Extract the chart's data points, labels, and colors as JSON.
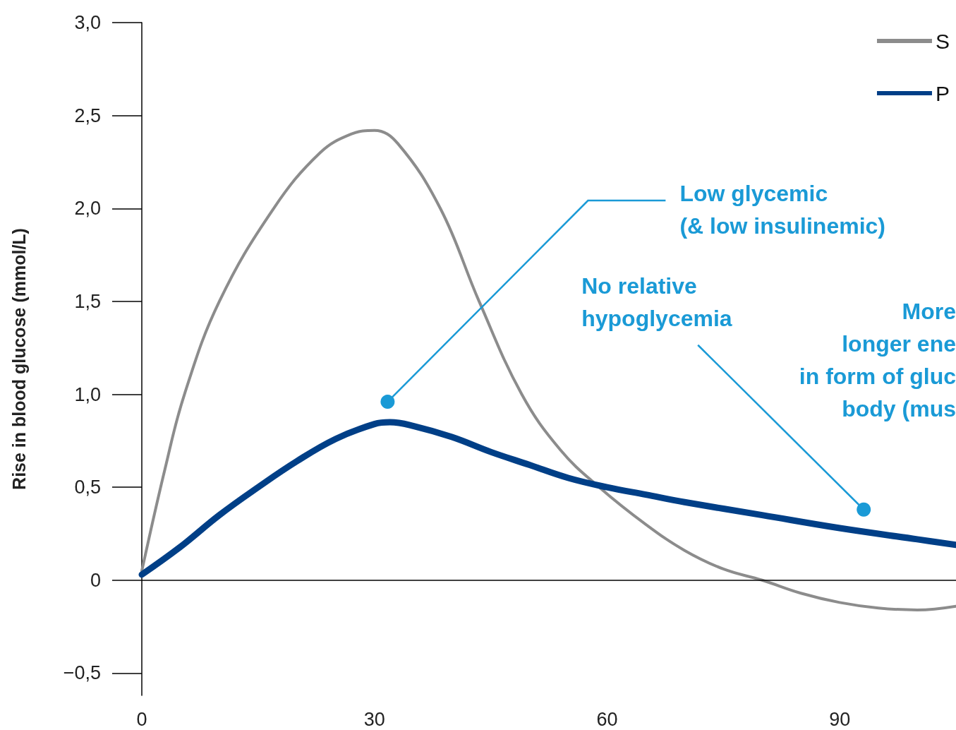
{
  "chart_data": {
    "type": "line",
    "ylabel": "Rise in blood glucose (mmol/L)",
    "xlim": [
      0,
      105
    ],
    "xticks": [
      0,
      30,
      60,
      90
    ],
    "ylim": [
      -0.62,
      3.0
    ],
    "yticks": [
      {
        "value": -0.5,
        "label": "−0,5"
      },
      {
        "value": 0,
        "label": "0"
      },
      {
        "value": 0.5,
        "label": "0,5"
      },
      {
        "value": 1.0,
        "label": "1,0"
      },
      {
        "value": 1.5,
        "label": "1,5"
      },
      {
        "value": 2.0,
        "label": "2,0"
      },
      {
        "value": 2.5,
        "label": "2,5"
      },
      {
        "value": 3.0,
        "label": "3,0"
      }
    ],
    "grid": false,
    "legend": "top right",
    "marker": "none",
    "ref_lines": [
      {
        "axis": "y",
        "value": 0,
        "color": "#000000"
      }
    ],
    "series": [
      {
        "name": "S",
        "color": "#8c8c8c",
        "x": [
          0,
          3,
          5.5,
          10,
          17,
          23,
          27,
          30,
          33,
          38.5,
          43.5,
          49,
          54,
          59,
          65,
          70,
          75,
          80,
          85,
          90,
          95,
          100,
          105
        ],
        "values": [
          0.05,
          0.6,
          1.0,
          1.5,
          2.0,
          2.3,
          2.4,
          2.42,
          2.35,
          2.0,
          1.5,
          1.0,
          0.7,
          0.5,
          0.3,
          0.16,
          0.06,
          0,
          -0.07,
          -0.12,
          -0.15,
          -0.16,
          -0.14
        ]
      },
      {
        "name": "P",
        "color": "#003f87",
        "x": [
          0,
          5,
          10,
          15,
          20,
          25,
          30,
          32,
          35,
          40,
          45,
          50,
          55,
          60,
          65,
          70,
          80,
          90,
          100,
          105
        ],
        "values": [
          0.03,
          0.18,
          0.35,
          0.5,
          0.64,
          0.76,
          0.84,
          0.85,
          0.83,
          0.77,
          0.69,
          0.62,
          0.55,
          0.5,
          0.46,
          0.42,
          0.35,
          0.28,
          0.22,
          0.19
        ]
      }
    ],
    "annotations": [
      {
        "text": "Low glycemic\n(& low insulinemic)",
        "x": 31.7,
        "y": 0.96
      },
      {
        "text": "No relative\nhypoglycemia",
        "x": 93.1,
        "y": 0.38
      },
      "More\nlonger ene\nin form of gluc\nbody (mus"
    ]
  }
}
